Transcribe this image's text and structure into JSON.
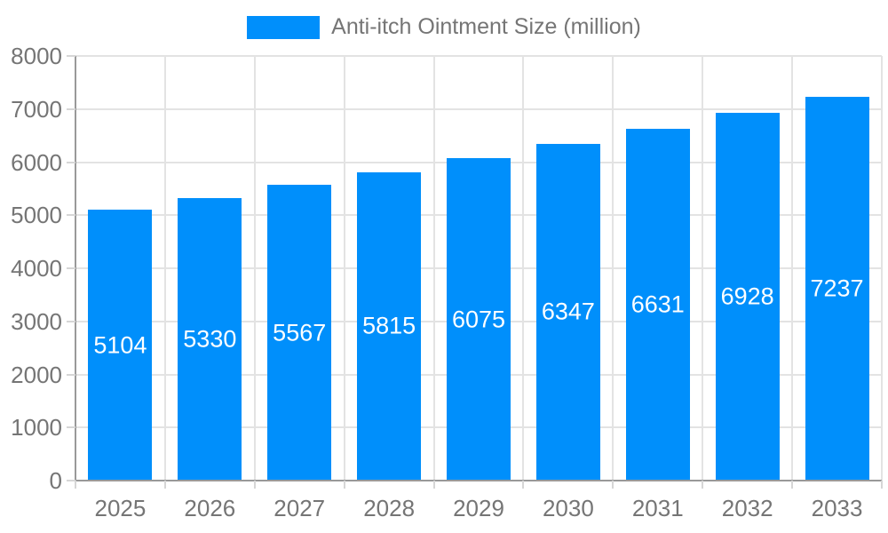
{
  "legend": {
    "label": "Anti-itch Ointment Size (million)"
  },
  "chart_data": {
    "type": "bar",
    "title": "Anti-itch Ointment Size (million)",
    "categories": [
      "2025",
      "2026",
      "2027",
      "2028",
      "2029",
      "2030",
      "2031",
      "2032",
      "2033"
    ],
    "series": [
      {
        "name": "Anti-itch Ointment Size (million)",
        "values": [
          5104,
          5330,
          5567,
          5815,
          6075,
          6347,
          6631,
          6928,
          7237
        ]
      }
    ],
    "xlabel": "",
    "ylabel": "",
    "ylim": [
      0,
      8000
    ],
    "ytick_step": 1000,
    "grid": true,
    "legend_position": "top",
    "value_labels": "inside-center",
    "colors": {
      "bar": "#008FFB",
      "grid": "#e3e3e3",
      "axis": "#999999",
      "tick": "#d6d6d6",
      "text": "#757575",
      "value_label": "#ffffff",
      "background": "#ffffff"
    }
  }
}
